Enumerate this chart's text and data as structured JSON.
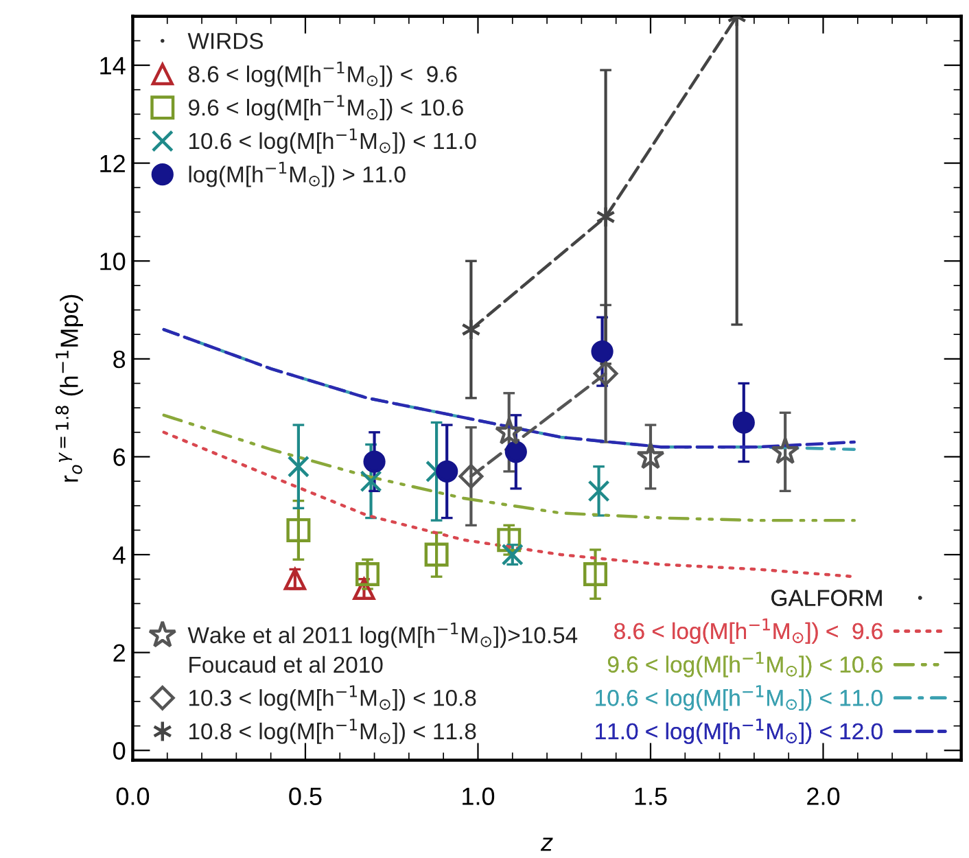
{
  "chart_data": {
    "type": "scatter",
    "xlabel": "z",
    "ylabel": "r$_{o}$$^{γ=1.8}$ (h$^{−1}$Mpc)",
    "xlim": [
      0,
      2.4
    ],
    "ylim": [
      -0.2,
      15.0
    ],
    "xticks": [
      {
        "value": 0,
        "label": "0.0"
      },
      {
        "value": 0.5,
        "label": "0.5"
      },
      {
        "value": 1.0,
        "label": "1.0"
      },
      {
        "value": 1.5,
        "label": "1.5"
      },
      {
        "value": 2.0,
        "label": "2.0"
      }
    ],
    "yticks": [
      0,
      2,
      4,
      6,
      8,
      10,
      12,
      14
    ],
    "legend": "left",
    "annotations": [
      "WIRDS",
      "Foucaud et al 2010",
      "GALFORM"
    ],
    "series": [
      {
        "name": "8.6 < log(M[h$^{−1}$M$_{⊙}$]) <  9.6",
        "marker": "triangle",
        "color": "#b5272d",
        "x": [
          0.47,
          0.67
        ],
        "values": [
          3.5,
          3.3
        ],
        "errors": [
          0.2,
          0.2
        ]
      },
      {
        "name": "9.6 < log(M[h$^{−1}$M$_{⊙}$]) < 10.6",
        "marker": "square",
        "color": "#7a9a2a",
        "x": [
          0.48,
          0.68,
          0.88,
          1.09,
          1.34
        ],
        "values": [
          4.5,
          3.6,
          4.0,
          4.3,
          3.6
        ],
        "errors": [
          0.6,
          0.3,
          0.45,
          0.3,
          0.5
        ]
      },
      {
        "name": "10.6 < log(M[h$^{−1}$M$_{⊙}$]) < 11.0",
        "marker": "cross",
        "color": "#1f8a8a",
        "x": [
          0.48,
          0.69,
          0.88,
          1.1,
          1.35
        ],
        "values": [
          5.8,
          5.5,
          5.7,
          4.0,
          5.3
        ],
        "errors": [
          0.85,
          0.75,
          1.0,
          0.2,
          0.5
        ]
      },
      {
        "name": "log(M[h$^{−1}$M$_{⊙}$]) > 11.0",
        "marker": "circle",
        "color": "#14148c",
        "x": [
          0.7,
          0.91,
          1.11,
          1.36,
          1.77
        ],
        "values": [
          5.9,
          5.7,
          6.1,
          8.15,
          6.7
        ],
        "errors": [
          0.6,
          0.95,
          0.75,
          0.7,
          0.8
        ]
      },
      {
        "name": "Wake et al 2011 log(M[h$^{−1}$M$_{⊙}$])>10.54",
        "marker": "star",
        "color": "#555555",
        "x": [
          1.09,
          1.5,
          1.89
        ],
        "values": [
          6.5,
          6.0,
          6.1
        ],
        "errors": [
          0.8,
          0.65,
          0.8
        ]
      },
      {
        "name": "10.3 < log(M[h$^{−1}$M$_{⊙}$]) < 10.8",
        "marker": "diamond",
        "color": "#555555",
        "x": [
          0.98,
          1.37
        ],
        "values": [
          5.6,
          7.7
        ],
        "errors": [
          1.0,
          1.4
        ]
      },
      {
        "name": "10.8 < log(M[h$^{−1}$M$_{⊙}$]) < 11.8",
        "marker": "cross",
        "line_style": "solid",
        "color": "#444444",
        "x": [
          0.98,
          1.37,
          1.75
        ],
        "values": [
          8.6,
          10.9,
          15.0
        ],
        "errors": [
          1.4,
          3.0,
          [
            8.7,
            15.0
          ]
        ]
      },
      {
        "name": "8.6 < log(M[h$^{−1}$M$_{⊙}$]) <  9.6",
        "type": "line",
        "line_style": "dotted",
        "color": "#d9474f",
        "x": [
          0.09,
          0.4,
          0.68,
          0.96,
          1.24,
          1.53,
          1.81,
          2.09
        ],
        "values": [
          6.5,
          5.6,
          4.8,
          4.3,
          4.0,
          3.8,
          3.7,
          3.55
        ]
      },
      {
        "name": "9.6 < log(M[h$^{−1}$M$_{⊙}$]) < 10.6",
        "type": "line",
        "line_style": "dashdotdot",
        "color": "#8aa83a",
        "x": [
          0.09,
          0.4,
          0.68,
          0.96,
          1.24,
          1.53,
          1.81,
          2.09
        ],
        "values": [
          6.85,
          6.15,
          5.6,
          5.15,
          4.85,
          4.75,
          4.7,
          4.7
        ]
      },
      {
        "name": "10.6 < log(M[h$^{−1}$M$_{⊙}$]) < 11.0",
        "type": "line",
        "line_style": "dashdot",
        "color": "#3aa0b0",
        "x": [
          0.09,
          0.4,
          0.68,
          0.96,
          1.24,
          1.53,
          1.81,
          2.09
        ],
        "values": [
          8.6,
          7.8,
          7.2,
          6.8,
          6.4,
          6.2,
          6.2,
          6.15
        ]
      },
      {
        "name": "11.0 < log(M[h$^{−1}$M$_{⊙}$]) < 12.0",
        "type": "line",
        "line_style": "dashed",
        "color": "#2a2ab0",
        "x": [
          0.09,
          0.4,
          0.68,
          0.96,
          1.24,
          1.53,
          1.81,
          2.09
        ],
        "values": [
          8.6,
          7.8,
          7.2,
          6.8,
          6.4,
          6.2,
          6.2,
          6.3
        ]
      },
      {
        "type": "line",
        "line_style": "dashed",
        "color": "#555555",
        "x": [
          0.98,
          1.37
        ],
        "values": [
          5.6,
          7.7
        ]
      },
      {
        "type": "line",
        "line_style": "dashed",
        "color": "#444444",
        "x": [
          0.98,
          1.37,
          1.75
        ],
        "values": [
          8.6,
          10.9,
          15.0
        ]
      }
    ]
  }
}
